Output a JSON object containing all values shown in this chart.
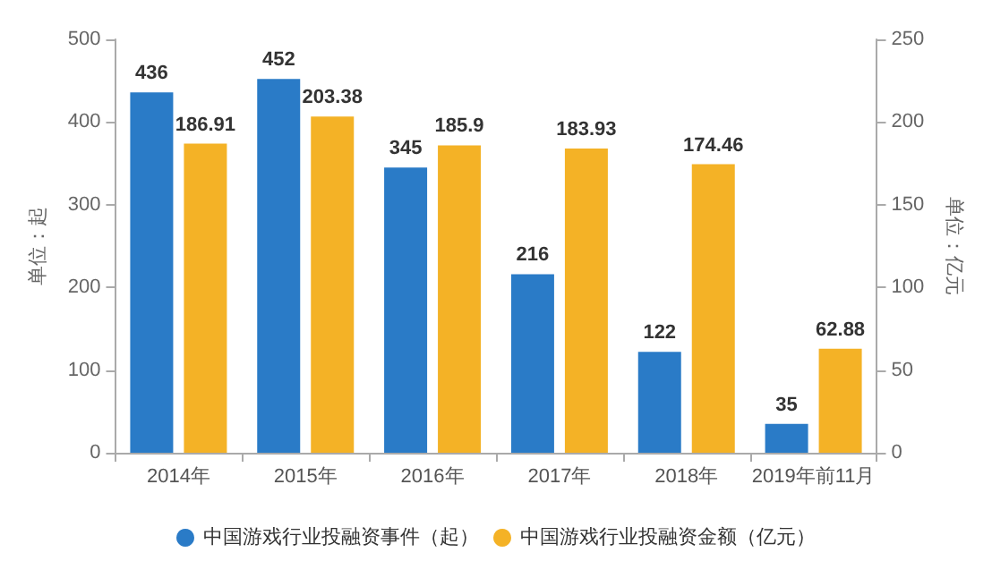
{
  "chart_data": {
    "type": "bar",
    "categories": [
      "2014年",
      "2015年",
      "2016年",
      "2017年",
      "2018年",
      "2019年前11月"
    ],
    "series": [
      {
        "name": "中国游戏行业投融资事件（起）",
        "color": "#2a7bc7",
        "values": [
          436,
          452,
          345,
          216,
          122,
          35
        ]
      },
      {
        "name": "中国游戏行业投融资金额（亿元）",
        "color": "#f4b226",
        "values": [
          186.91,
          203.38,
          185.9,
          183.93,
          174.46,
          62.88
        ],
        "axis": "y2"
      }
    ],
    "ylabel": "单位：起",
    "y2label": "单位：亿元",
    "ylim": [
      0,
      500
    ],
    "yticks": [
      0,
      100,
      200,
      300,
      400,
      500
    ],
    "y2lim": [
      0,
      250
    ],
    "y2ticks": [
      0,
      50,
      100,
      150,
      200,
      250
    ],
    "data_labels": true,
    "grid": false,
    "legend": "bottom"
  }
}
